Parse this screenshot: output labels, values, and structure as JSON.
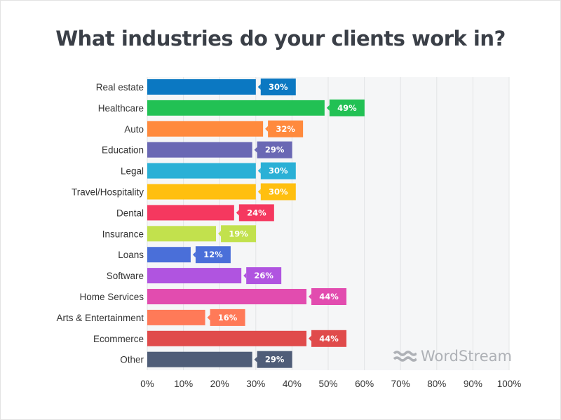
{
  "chart_data": {
    "type": "bar",
    "orientation": "horizontal",
    "title": "What industries do your clients work in?",
    "categories": [
      "Real estate",
      "Healthcare",
      "Auto",
      "Education",
      "Legal",
      "Travel/Hospitality",
      "Dental",
      "Insurance",
      "Loans",
      "Software",
      "Home Services",
      "Arts & Entertainment",
      "Ecommerce",
      "Other"
    ],
    "values": [
      30,
      49,
      32,
      29,
      30,
      30,
      24,
      19,
      12,
      26,
      44,
      16,
      44,
      29
    ],
    "data_labels": [
      "30%",
      "49%",
      "32%",
      "29%",
      "30%",
      "30%",
      "24%",
      "19%",
      "12%",
      "26%",
      "44%",
      "16%",
      "44%",
      "29%"
    ],
    "colors": [
      "#0b78c2",
      "#22c154",
      "#ff8a3d",
      "#6a68b4",
      "#2ab0d6",
      "#ffbf0f",
      "#f5385f",
      "#c2e14d",
      "#4a6fd9",
      "#b054e0",
      "#e24caf",
      "#ff7a58",
      "#e04b4b",
      "#4f5d78"
    ],
    "xlim": [
      0,
      100
    ],
    "x_ticks": [
      "0%",
      "10%",
      "20%",
      "30%",
      "40%",
      "50%",
      "60%",
      "70%",
      "80%",
      "90%",
      "100%"
    ],
    "grid": true
  },
  "watermark": "WordStream"
}
